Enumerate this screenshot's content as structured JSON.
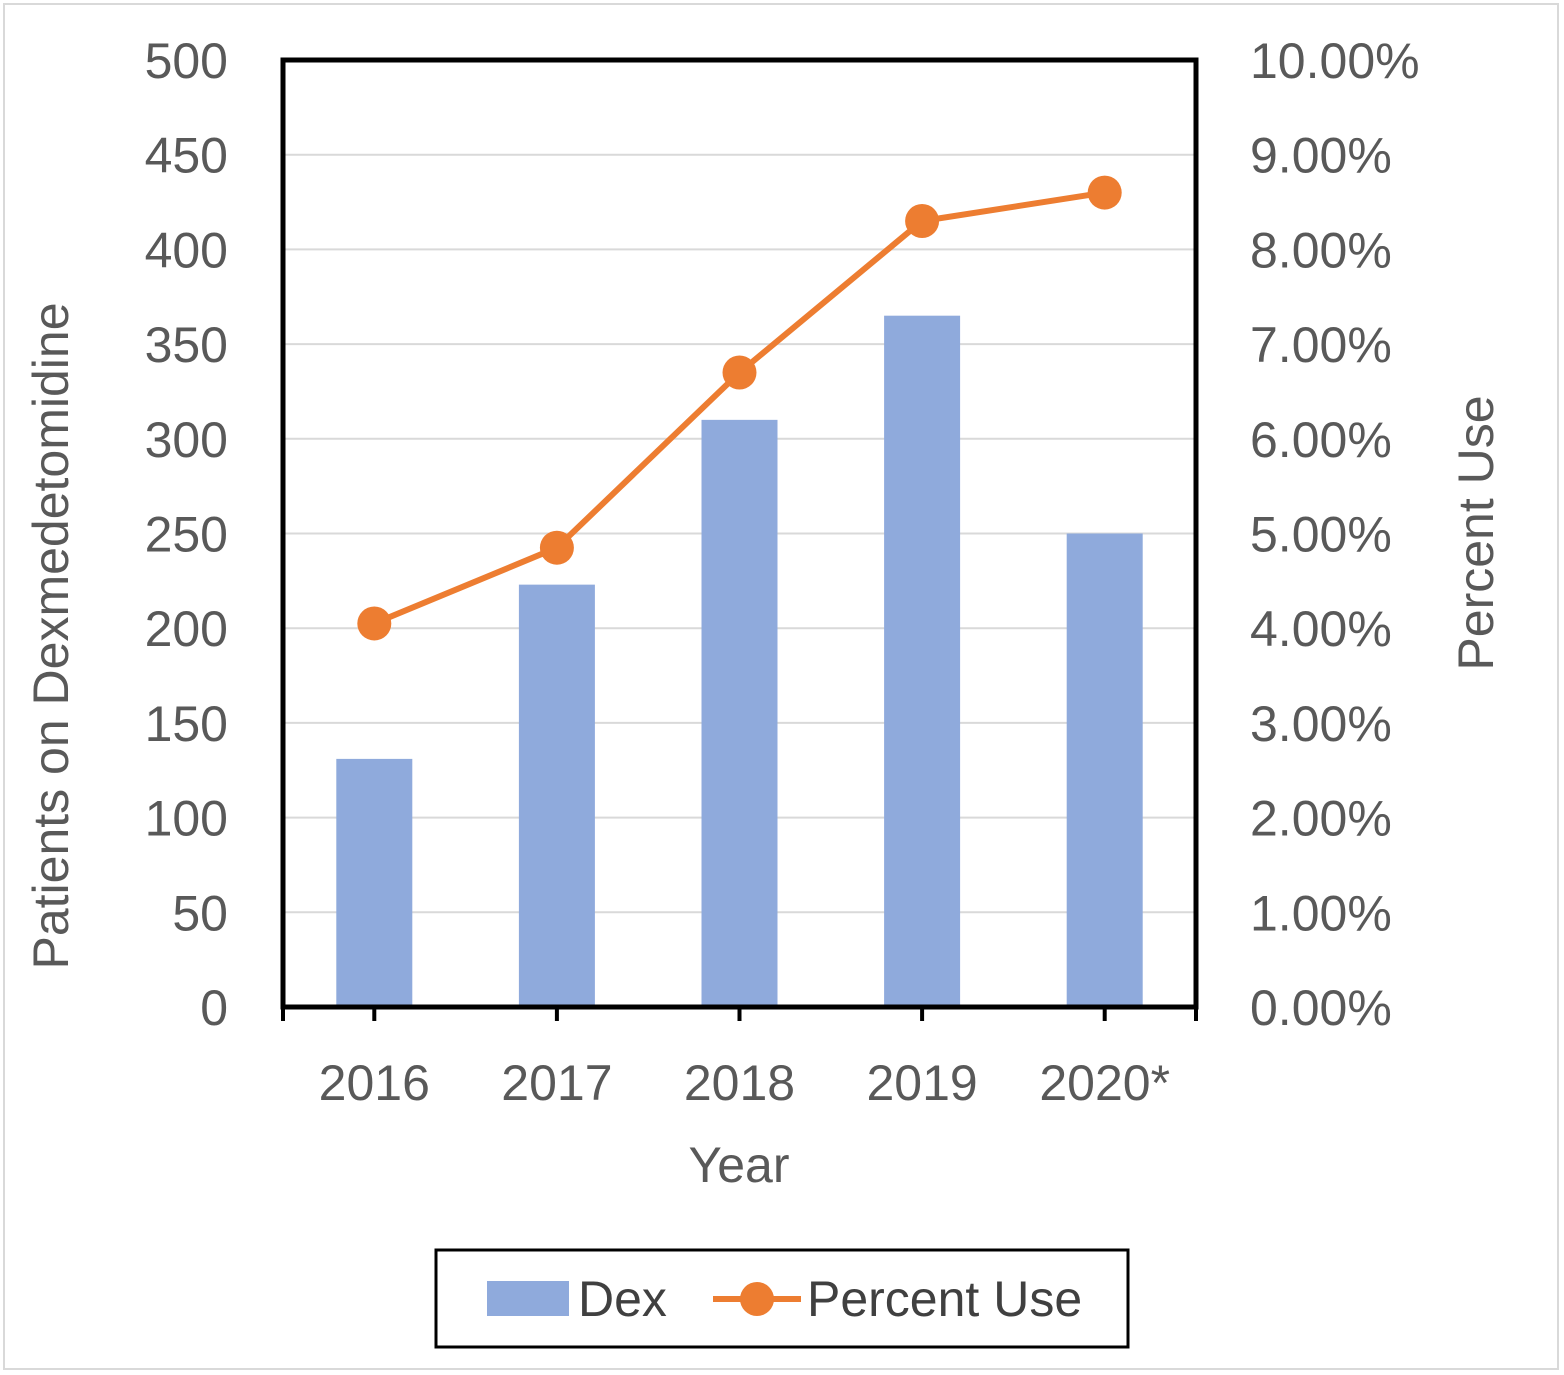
{
  "chart_data": {
    "type": "bar",
    "categories": [
      "2016",
      "2017",
      "2018",
      "2019",
      "2020*"
    ],
    "series": [
      {
        "name": "Dex",
        "type": "bar",
        "axis": "left",
        "color": "#8faadc",
        "values": [
          131,
          223,
          310,
          365,
          250
        ]
      },
      {
        "name": "Percent Use",
        "type": "line",
        "axis": "right",
        "color": "#ed7d31",
        "values": [
          4.05,
          4.85,
          6.7,
          8.3,
          8.6
        ]
      }
    ],
    "xlabel": "Year",
    "ylabel": "Patients on Dexmedetomidine",
    "y2label": "Percent Use",
    "ylim": [
      0,
      500
    ],
    "y2lim": [
      0,
      10
    ],
    "yticks": [
      "0",
      "50",
      "100",
      "150",
      "200",
      "250",
      "300",
      "350",
      "400",
      "450",
      "500"
    ],
    "y2ticks": [
      "0.00%",
      "1.00%",
      "2.00%",
      "3.00%",
      "4.00%",
      "5.00%",
      "6.00%",
      "7.00%",
      "8.00%",
      "9.00%",
      "10.00%"
    ],
    "grid": true,
    "legend": "bottom"
  }
}
